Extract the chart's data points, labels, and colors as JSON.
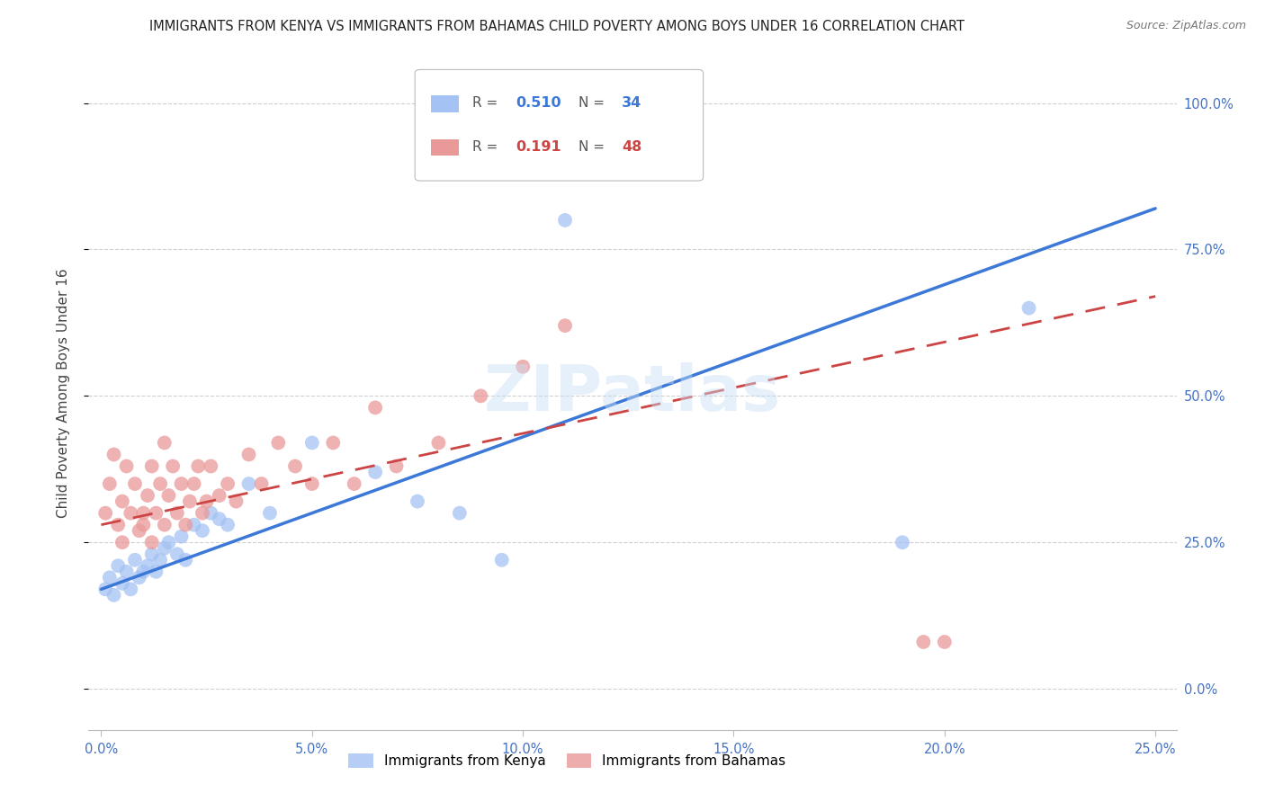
{
  "title": "IMMIGRANTS FROM KENYA VS IMMIGRANTS FROM BAHAMAS CHILD POVERTY AMONG BOYS UNDER 16 CORRELATION CHART",
  "source": "Source: ZipAtlas.com",
  "ylabel": "Child Poverty Among Boys Under 16",
  "xlim": [
    -0.003,
    0.255
  ],
  "ylim": [
    -0.07,
    1.08
  ],
  "yticks": [
    0.0,
    0.25,
    0.5,
    0.75,
    1.0
  ],
  "ytick_labels": [
    "0.0%",
    "25.0%",
    "50.0%",
    "75.0%",
    "100.0%"
  ],
  "xticks": [
    0.0,
    0.05,
    0.1,
    0.15,
    0.2,
    0.25
  ],
  "xtick_labels": [
    "0.0%",
    "5.0%",
    "10.0%",
    "15.0%",
    "20.0%",
    "25.0%"
  ],
  "background_color": "#ffffff",
  "grid_color": "#d0d0d0",
  "watermark": "ZIPatlas",
  "legend_R_kenya": "0.510",
  "legend_N_kenya": "34",
  "legend_R_bahamas": "0.191",
  "legend_N_bahamas": "48",
  "kenya_color": "#a4c2f4",
  "bahamas_color": "#ea9999",
  "kenya_line_color": "#3c78d8",
  "bahamas_line_color": "#cc4444",
  "kenya_x": [
    0.001,
    0.002,
    0.003,
    0.004,
    0.005,
    0.006,
    0.007,
    0.008,
    0.009,
    0.01,
    0.011,
    0.012,
    0.013,
    0.014,
    0.015,
    0.016,
    0.018,
    0.019,
    0.02,
    0.022,
    0.024,
    0.026,
    0.028,
    0.03,
    0.035,
    0.04,
    0.05,
    0.065,
    0.075,
    0.085,
    0.095,
    0.11,
    0.19,
    0.22
  ],
  "kenya_y": [
    0.17,
    0.19,
    0.16,
    0.21,
    0.18,
    0.2,
    0.17,
    0.22,
    0.19,
    0.2,
    0.21,
    0.23,
    0.2,
    0.22,
    0.24,
    0.25,
    0.23,
    0.26,
    0.22,
    0.28,
    0.27,
    0.3,
    0.29,
    0.28,
    0.35,
    0.3,
    0.42,
    0.37,
    0.32,
    0.3,
    0.22,
    0.8,
    0.25,
    0.65
  ],
  "bahamas_x": [
    0.001,
    0.002,
    0.003,
    0.004,
    0.005,
    0.005,
    0.006,
    0.007,
    0.008,
    0.009,
    0.01,
    0.01,
    0.011,
    0.012,
    0.012,
    0.013,
    0.014,
    0.015,
    0.015,
    0.016,
    0.017,
    0.018,
    0.019,
    0.02,
    0.021,
    0.022,
    0.023,
    0.024,
    0.025,
    0.026,
    0.028,
    0.03,
    0.032,
    0.035,
    0.038,
    0.042,
    0.046,
    0.05,
    0.055,
    0.06,
    0.065,
    0.07,
    0.08,
    0.09,
    0.1,
    0.11,
    0.195,
    0.2
  ],
  "bahamas_y": [
    0.3,
    0.35,
    0.4,
    0.28,
    0.32,
    0.25,
    0.38,
    0.3,
    0.35,
    0.27,
    0.3,
    0.28,
    0.33,
    0.25,
    0.38,
    0.3,
    0.35,
    0.28,
    0.42,
    0.33,
    0.38,
    0.3,
    0.35,
    0.28,
    0.32,
    0.35,
    0.38,
    0.3,
    0.32,
    0.38,
    0.33,
    0.35,
    0.32,
    0.4,
    0.35,
    0.42,
    0.38,
    0.35,
    0.42,
    0.35,
    0.48,
    0.38,
    0.42,
    0.5,
    0.55,
    0.62,
    0.08,
    0.08
  ],
  "kenya_line_x": [
    0.0,
    0.25
  ],
  "kenya_line_y": [
    0.17,
    0.82
  ],
  "bahamas_line_x": [
    0.0,
    0.25
  ],
  "bahamas_line_y": [
    0.28,
    0.67
  ]
}
